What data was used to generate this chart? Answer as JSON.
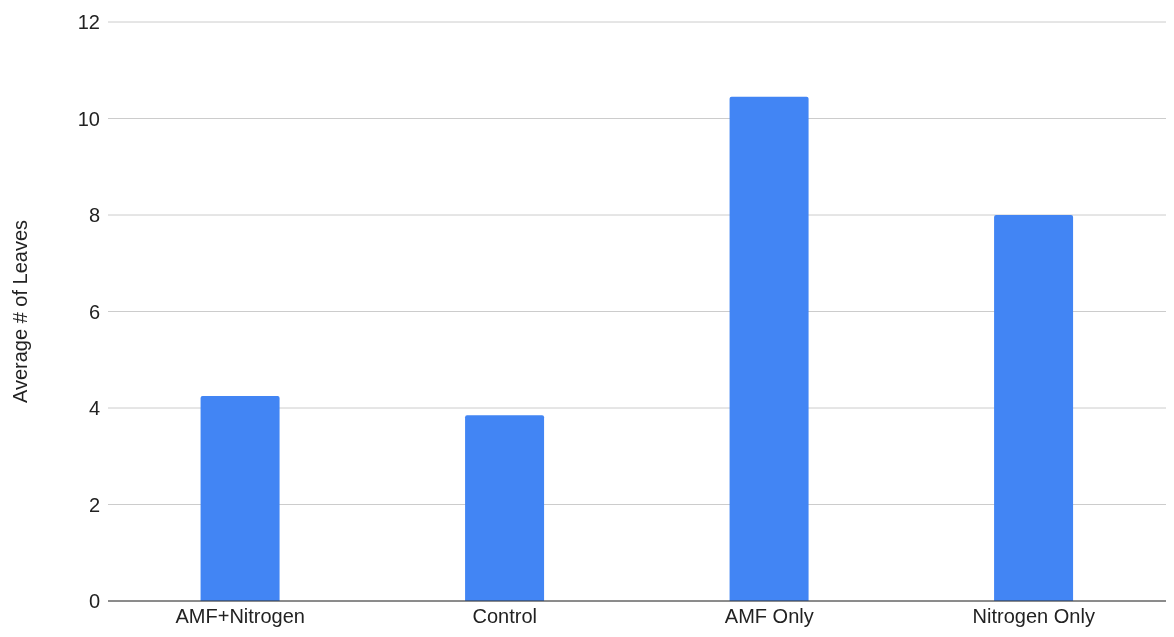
{
  "chart_data": {
    "type": "bar",
    "ylabel": "Average # of Leaves",
    "categories": [
      "AMF+Nitrogen",
      "Control",
      "AMF Only",
      "Nitrogen Only"
    ],
    "values": [
      4.25,
      3.85,
      10.45,
      8
    ],
    "color": "#4285f4",
    "ylim": [
      0,
      12
    ],
    "yticks": [
      0,
      2,
      4,
      6,
      8,
      10,
      12
    ],
    "grid": "y"
  }
}
